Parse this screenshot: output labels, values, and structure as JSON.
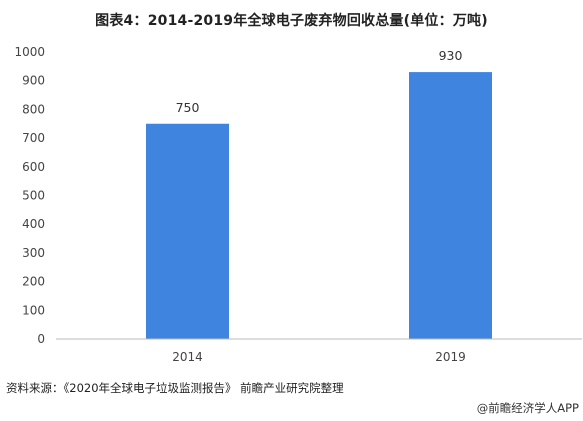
{
  "title": "图表4：2014-2019年全球电子废弃物回收总量(单位：万吨)",
  "source": "资料来源：《2020年全球电子垃圾监测报告》 前瞻产业研究院整理",
  "brand": "@前瞻经济学人APP",
  "colors": {
    "bar": "#3f85e0",
    "axis": "#bbbbbb"
  },
  "chart_data": {
    "type": "bar",
    "title": "图表4：2014-2019年全球电子废弃物回收总量(单位：万吨)",
    "categories": [
      "2014",
      "2019"
    ],
    "values": [
      750,
      930
    ],
    "data_labels": [
      "750",
      "930"
    ],
    "ylim": [
      0,
      1000
    ],
    "yticks": [
      0,
      100,
      200,
      300,
      400,
      500,
      600,
      700,
      800,
      900,
      1000
    ],
    "ytick_labels": [
      "0",
      "100",
      "200",
      "300",
      "400",
      "500",
      "600",
      "700",
      "800",
      "900",
      "1000"
    ],
    "xlabel": "",
    "ylabel": "",
    "grid": false,
    "legend": "none"
  }
}
